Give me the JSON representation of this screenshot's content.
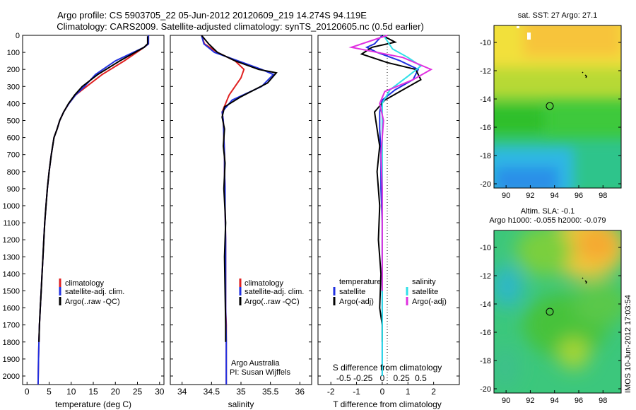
{
  "header": {
    "line1": "Argo profile: CS 5903705_22 05-Jun-2012 20120609_219 14.274S 94.119E",
    "line2": "Climatology: CARS2009. Satellite-adjusted climatology: synTS_20120605.nc (0.5d earlier)"
  },
  "colors": {
    "climatology": "#e02020",
    "satellite": "#2030e0",
    "argo": "#000000",
    "sal_satellite": "#30e0e8",
    "sal_argo": "#e030e0"
  },
  "chart_data": [
    {
      "type": "line",
      "id": "temperature",
      "xlabel": "temperature (deg C)",
      "ylabel": "",
      "xlim": [
        -1,
        31
      ],
      "ylim": [
        2050,
        0
      ],
      "xticks": [
        0,
        5,
        10,
        15,
        20,
        25,
        30
      ],
      "yticks": [
        0,
        100,
        200,
        300,
        400,
        500,
        600,
        700,
        800,
        900,
        1000,
        1100,
        1200,
        1300,
        1400,
        1500,
        1600,
        1700,
        1800,
        1900,
        2000
      ],
      "legend": [
        "climatology",
        "satellite-adj. clim.",
        "Argo(..raw -QC)"
      ],
      "legend_position": "lower-center",
      "series": [
        {
          "name": "climatology",
          "color": "#e02020",
          "x": [
            27.5,
            27.5,
            26.5,
            22,
            17,
            13.5,
            11,
            9.5,
            8.3,
            7.4,
            6.8,
            6.1,
            5.5,
            5.0,
            4.6,
            4.3,
            4.0,
            3.8,
            3.6,
            3.4,
            3.2,
            3.0,
            2.8,
            2.7,
            2.6,
            2.5
          ],
          "y": [
            0,
            50,
            70,
            150,
            230,
            300,
            350,
            400,
            450,
            500,
            550,
            600,
            700,
            800,
            900,
            1000,
            1100,
            1200,
            1300,
            1400,
            1500,
            1600,
            1700,
            1800,
            1900,
            2050
          ]
        },
        {
          "name": "satellite-adj. clim.",
          "color": "#2030e0",
          "x": [
            27.5,
            27.5,
            26.5,
            20,
            15.5,
            13,
            11,
            9.5,
            8.3,
            7.4,
            6.8,
            6.1,
            5.5,
            5.0,
            4.6,
            4.3,
            4.0,
            3.8,
            3.6,
            3.4,
            3.2,
            3.0,
            2.8,
            2.7,
            2.6,
            2.5
          ],
          "y": [
            0,
            50,
            70,
            150,
            230,
            300,
            350,
            400,
            450,
            500,
            550,
            600,
            700,
            800,
            900,
            1000,
            1100,
            1200,
            1300,
            1400,
            1500,
            1600,
            1700,
            1800,
            1900,
            2050
          ]
        },
        {
          "name": "Argo(..raw -QC)",
          "color": "#000000",
          "x": [
            27.3,
            27.3,
            26.5,
            21,
            16,
            12.5,
            10.8,
            9.4,
            8.3,
            7.4,
            6.8,
            6.1,
            5.5,
            5.0,
            4.6,
            4.3,
            4.0,
            3.8,
            3.6,
            3.4,
            3.2,
            3.0,
            2.8,
            2.7
          ],
          "y": [
            5,
            50,
            70,
            150,
            230,
            300,
            350,
            400,
            450,
            500,
            550,
            600,
            700,
            800,
            900,
            1000,
            1100,
            1200,
            1300,
            1400,
            1500,
            1600,
            1700,
            1800
          ]
        }
      ]
    },
    {
      "type": "line",
      "id": "salinity",
      "xlabel": "salinity",
      "xlim": [
        33.8,
        36.2
      ],
      "ylim": [
        2050,
        0
      ],
      "xticks": [
        34,
        34.5,
        35,
        35.5,
        36
      ],
      "legend": [
        "climatology",
        "satellite-adj. clim.",
        "Argo(..raw -QC)"
      ],
      "legend_position": "lower-right",
      "annotations": [
        "Argo Australia",
        "PI: Susan Wijffels"
      ],
      "series": [
        {
          "name": "climatology",
          "color": "#e02020",
          "x": [
            34.33,
            34.38,
            34.6,
            34.9,
            35.05,
            35.0,
            34.8,
            34.68,
            34.7,
            34.71,
            34.72,
            34.72,
            34.73,
            34.73,
            34.74,
            34.74,
            34.74,
            34.75,
            34.75,
            34.75,
            34.75,
            34.75
          ],
          "y": [
            0,
            50,
            100,
            150,
            200,
            250,
            350,
            450,
            500,
            600,
            700,
            800,
            900,
            1000,
            1200,
            1400,
            1600,
            1700,
            1800,
            1900,
            2000,
            2050
          ]
        },
        {
          "name": "satellite-adj. clim.",
          "color": "#2030e0",
          "x": [
            34.33,
            34.37,
            34.55,
            34.95,
            35.35,
            35.55,
            35.35,
            34.85,
            34.68,
            34.7,
            34.71,
            34.72,
            34.72,
            34.73,
            34.73,
            34.74,
            34.74,
            34.74,
            34.75,
            34.75,
            34.75,
            34.75
          ],
          "y": [
            0,
            50,
            100,
            150,
            200,
            230,
            300,
            380,
            450,
            500,
            600,
            700,
            800,
            900,
            1000,
            1200,
            1400,
            1600,
            1800,
            1900,
            2000,
            2050
          ]
        },
        {
          "name": "Argo(..raw -QC)",
          "color": "#000000",
          "x": [
            34.33,
            34.45,
            34.6,
            34.9,
            35.3,
            35.6,
            35.45,
            35.0,
            34.72,
            34.68,
            34.72,
            34.7,
            34.73,
            34.71,
            34.74,
            34.72,
            34.73,
            34.74,
            34.74
          ],
          "y": [
            0,
            50,
            100,
            150,
            200,
            220,
            280,
            360,
            420,
            480,
            550,
            650,
            750,
            900,
            1100,
            1300,
            1500,
            1700,
            1800
          ]
        }
      ]
    },
    {
      "type": "line",
      "id": "difference",
      "xlabel": "T difference from climatology",
      "xlabel_top": "S difference from climatology",
      "xlim": [
        -2.5,
        3
      ],
      "ylim": [
        2050,
        0
      ],
      "xticks": [
        -2,
        -1,
        0,
        1,
        2
      ],
      "xticks_top": [
        "-0.5",
        "-0.25",
        "0",
        "0.25",
        "0.5"
      ],
      "legend_temperature": [
        "temperature",
        "satellite",
        "Argo(-adj)"
      ],
      "legend_salinity": [
        "salinity",
        "satellite",
        "Argo(-adj)"
      ],
      "series": [
        {
          "name": "satellite",
          "group": "temperature",
          "color": "#2030e0",
          "x": [
            0,
            -0.3,
            -0.6,
            -0.2,
            0.7,
            1.4,
            1.2,
            0.5,
            0,
            -0.1,
            -0.1,
            -0.05,
            -0.05,
            0,
            0,
            0,
            0,
            0,
            0,
            0
          ],
          "y": [
            0,
            50,
            70,
            100,
            150,
            200,
            260,
            320,
            380,
            450,
            550,
            700,
            900,
            1100,
            1300,
            1500,
            1700,
            1800,
            1900,
            2000
          ]
        },
        {
          "name": "Argo(-adj)",
          "group": "temperature",
          "color": "#000000",
          "x": [
            0,
            0.5,
            -0.4,
            -0.8,
            0.2,
            1.3,
            1.5,
            0.8,
            0.1,
            -0.3,
            -0.2,
            -0.1,
            -0.2,
            -0.1,
            -0.15,
            -0.05,
            -0.1,
            0,
            0
          ],
          "y": [
            0,
            40,
            70,
            110,
            160,
            200,
            260,
            320,
            380,
            450,
            550,
            650,
            800,
            1000,
            1200,
            1400,
            1600,
            1700,
            1800
          ]
        },
        {
          "name": "satellite",
          "group": "salinity",
          "color": "#30e0e8",
          "x": [
            0.05,
            0.4,
            1.0,
            1.5,
            1.0,
            0.3,
            0,
            0,
            0,
            0,
            0,
            0,
            0,
            0
          ],
          "y": [
            0,
            80,
            130,
            180,
            240,
            320,
            400,
            500,
            700,
            900,
            1200,
            1500,
            1800,
            2000
          ]
        },
        {
          "name": "Argo(-adj)",
          "group": "salinity",
          "color": "#e030e0",
          "x": [
            0.2,
            -1.2,
            0.8,
            1.9,
            1.2,
            0.1,
            -0.1,
            0.05,
            -0.05,
            0,
            0,
            0,
            0
          ],
          "y": [
            0,
            70,
            130,
            200,
            260,
            330,
            400,
            500,
            700,
            900,
            1100,
            1300,
            1500
          ]
        }
      ]
    },
    {
      "type": "heatmap",
      "id": "sst-map",
      "title": "sat. SST: 27  Argo: 27.1",
      "xlim": [
        89,
        99.5
      ],
      "ylim": [
        -20.3,
        -8.8
      ],
      "xticks": [
        90,
        92,
        94,
        96,
        98
      ],
      "yticks": [
        -10,
        -12,
        -14,
        -16,
        -18,
        -20
      ],
      "argo_position": [
        94.1,
        -14.3
      ]
    },
    {
      "type": "heatmap",
      "id": "sla-map",
      "title_line1": "Altim. SLA: -0.1",
      "title_line2": "Argo h1000: -0.055 h2000: -0.079",
      "xlim": [
        89,
        99.5
      ],
      "ylim": [
        -20.3,
        -8.8
      ],
      "xticks": [
        90,
        92,
        94,
        96,
        98
      ],
      "yticks": [
        -10,
        -12,
        -14,
        -16,
        -18,
        -20
      ],
      "argo_position": [
        94.1,
        -14.3
      ]
    }
  ],
  "footer": {
    "stamp": "IMOS 10-Jun-2012 17:03:54"
  }
}
